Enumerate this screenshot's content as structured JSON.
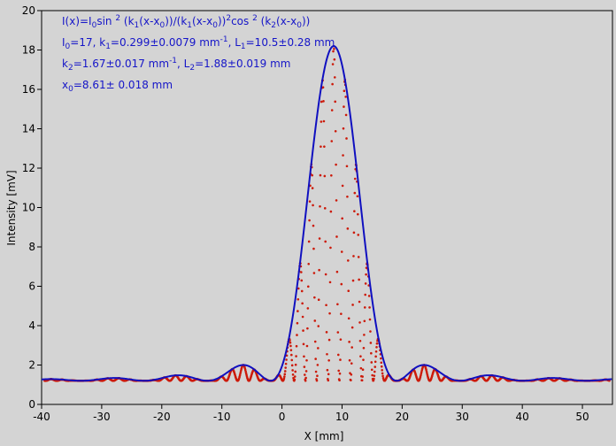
{
  "chart_data": {
    "type": "scatter",
    "xlabel": "X [mm]",
    "ylabel": "Intensity [mV]",
    "xlim": [
      -40,
      55
    ],
    "ylim": [
      0,
      20
    ],
    "x_ticks": [
      -40,
      -30,
      -20,
      -10,
      0,
      10,
      20,
      30,
      40,
      50
    ],
    "y_ticks": [
      0,
      2,
      4,
      6,
      8,
      10,
      12,
      14,
      16,
      18,
      20
    ],
    "grid": false,
    "colors": {
      "fit_line": "#1010c0",
      "data_points": "#cc1a0a",
      "formula_text": "#1515c8",
      "background": "#d4d4d4"
    },
    "fit_model": {
      "I0": 17,
      "k1": 0.299,
      "L1": 10.5,
      "k2": 1.67,
      "L2": 1.88,
      "x0": 8.61,
      "baseline": 1.2
    },
    "annotations": {
      "line1": {
        "a": "I(x)=I",
        "b": "0",
        "c": "sin ",
        "d": "2",
        "e": " (k",
        "f": "1",
        "g": "(x-x",
        "h": "0",
        "i": "))/(k",
        "j": "1",
        "k": "(x-x",
        "l": "0",
        "m": "))",
        "n": "2",
        "o": "cos ",
        "p": "2",
        "q": " (k",
        "r": "2",
        "s": "(x-x",
        "t": "0",
        "u": "))"
      },
      "line2": {
        "a": "I",
        "b": "0",
        "c": "=17,  k",
        "d": "1",
        "e": "=0.299±0.0079 mm",
        "f": "-1",
        "g": ",   L",
        "h": "1",
        "i": "=10.5±0.28 mm"
      },
      "line3": {
        "a": "k",
        "b": "2",
        "c": "=1.67±0.017 mm",
        "d": "-1",
        "e": ",   L",
        "f": "2",
        "g": "=1.88±0.019 mm"
      },
      "line4": {
        "a": "x",
        "b": "0",
        "c": "=8.61±  0.018 mm"
      }
    }
  }
}
